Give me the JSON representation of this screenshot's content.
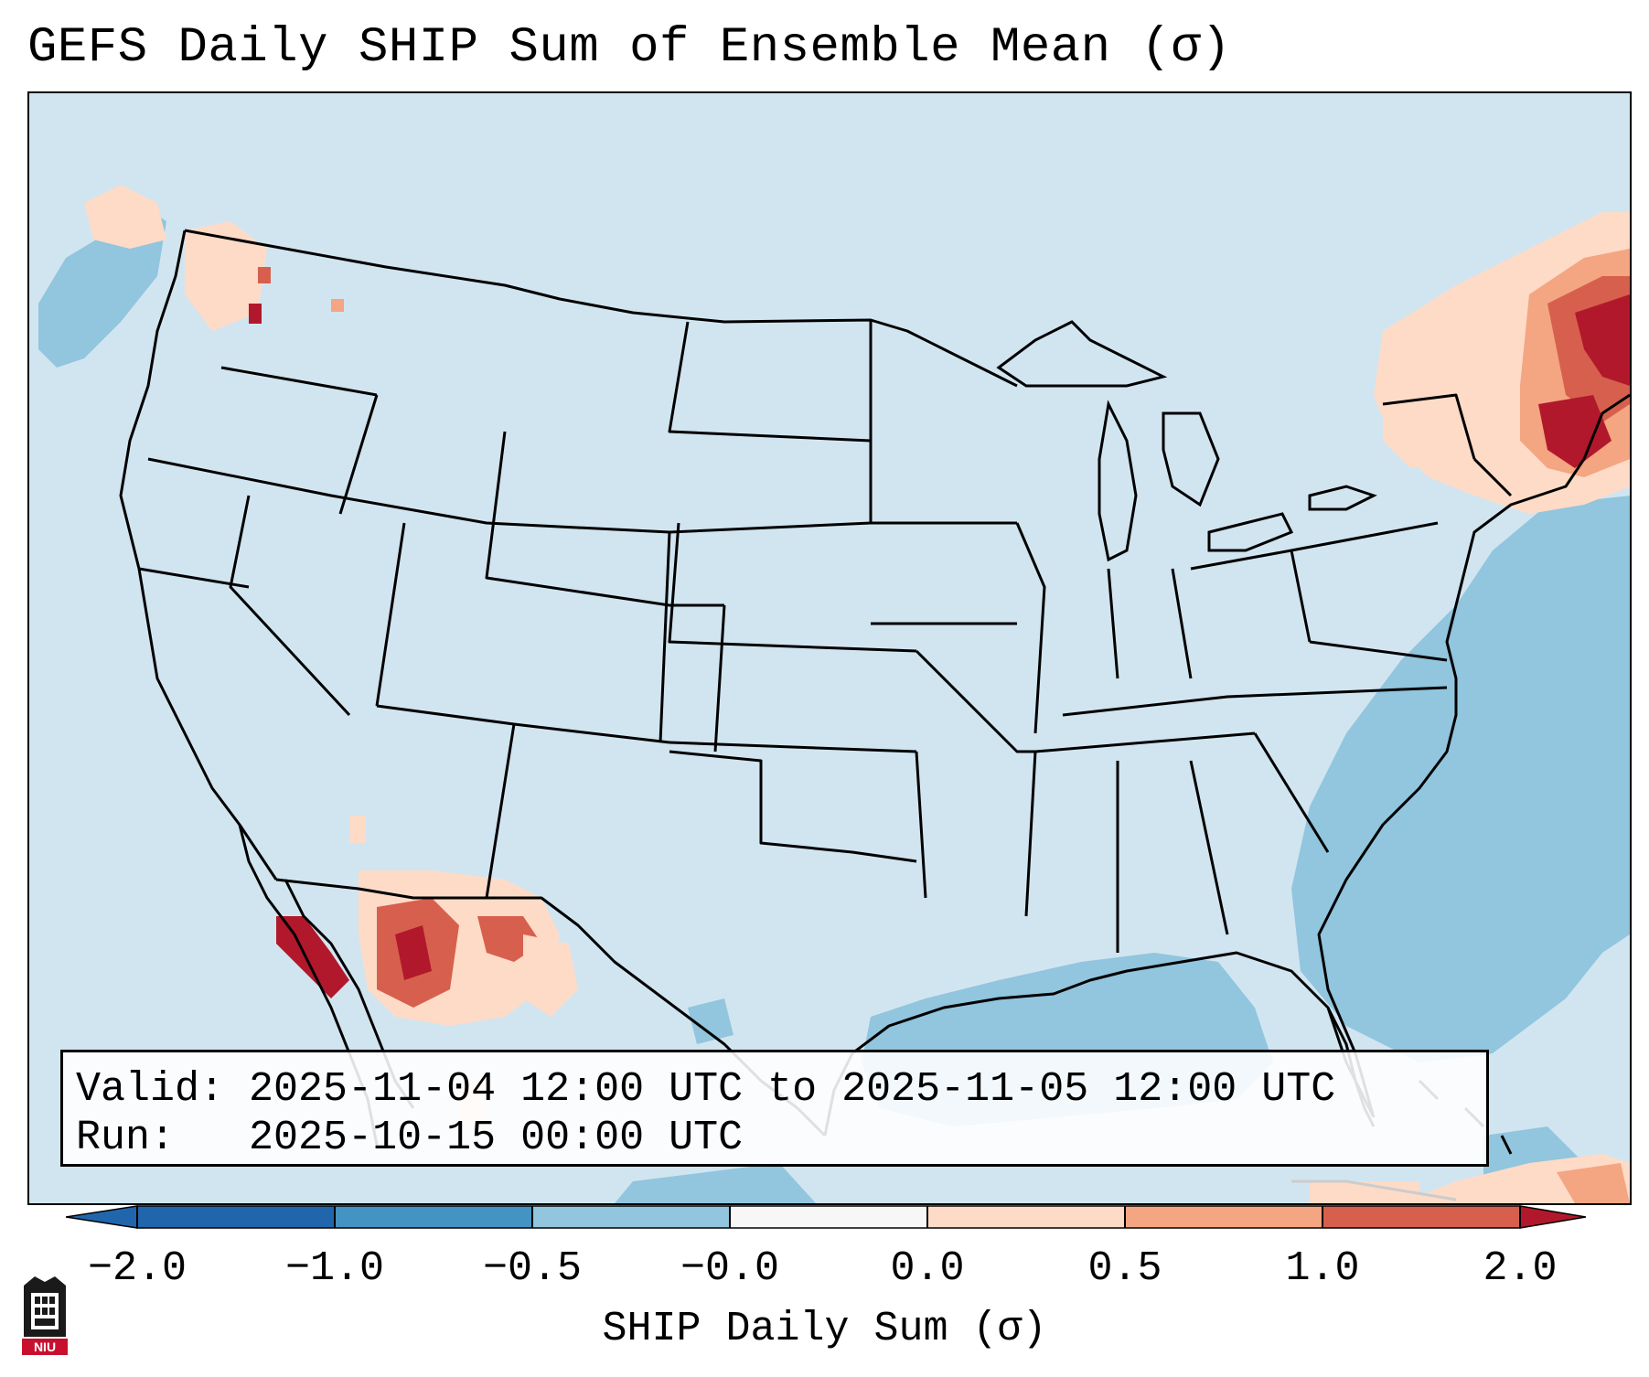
{
  "title": "GEFS Daily SHIP Sum of Ensemble Mean (σ)",
  "info": {
    "valid_label": "Valid:",
    "valid_value": "2025-11-04 12:00 UTC to 2025-11-05 12:00 UTC",
    "run_label": "Run:",
    "run_value": "2025-10-15 00:00 UTC"
  },
  "colorbar": {
    "label": "SHIP Daily Sum (σ)",
    "ticks": [
      "−2.0",
      "−1.0",
      "−0.5",
      "−0.0",
      "0.0",
      "0.5",
      "1.0",
      "2.0"
    ],
    "colors": [
      "#2166ac",
      "#4393c3",
      "#92c5de",
      "#d1e5f0",
      "#fddbc7",
      "#f4a582",
      "#d6604d",
      "#b2182b"
    ]
  },
  "logo": {
    "text": "NIU",
    "icon": "niu-logo"
  },
  "colors": {
    "background": "#d1e5f0",
    "ocean_negative": "#92c5de",
    "light_positive": "#fddbc7",
    "mid_positive": "#f4a582",
    "strong_positive": "#d6604d",
    "extreme_positive": "#b2182b"
  }
}
